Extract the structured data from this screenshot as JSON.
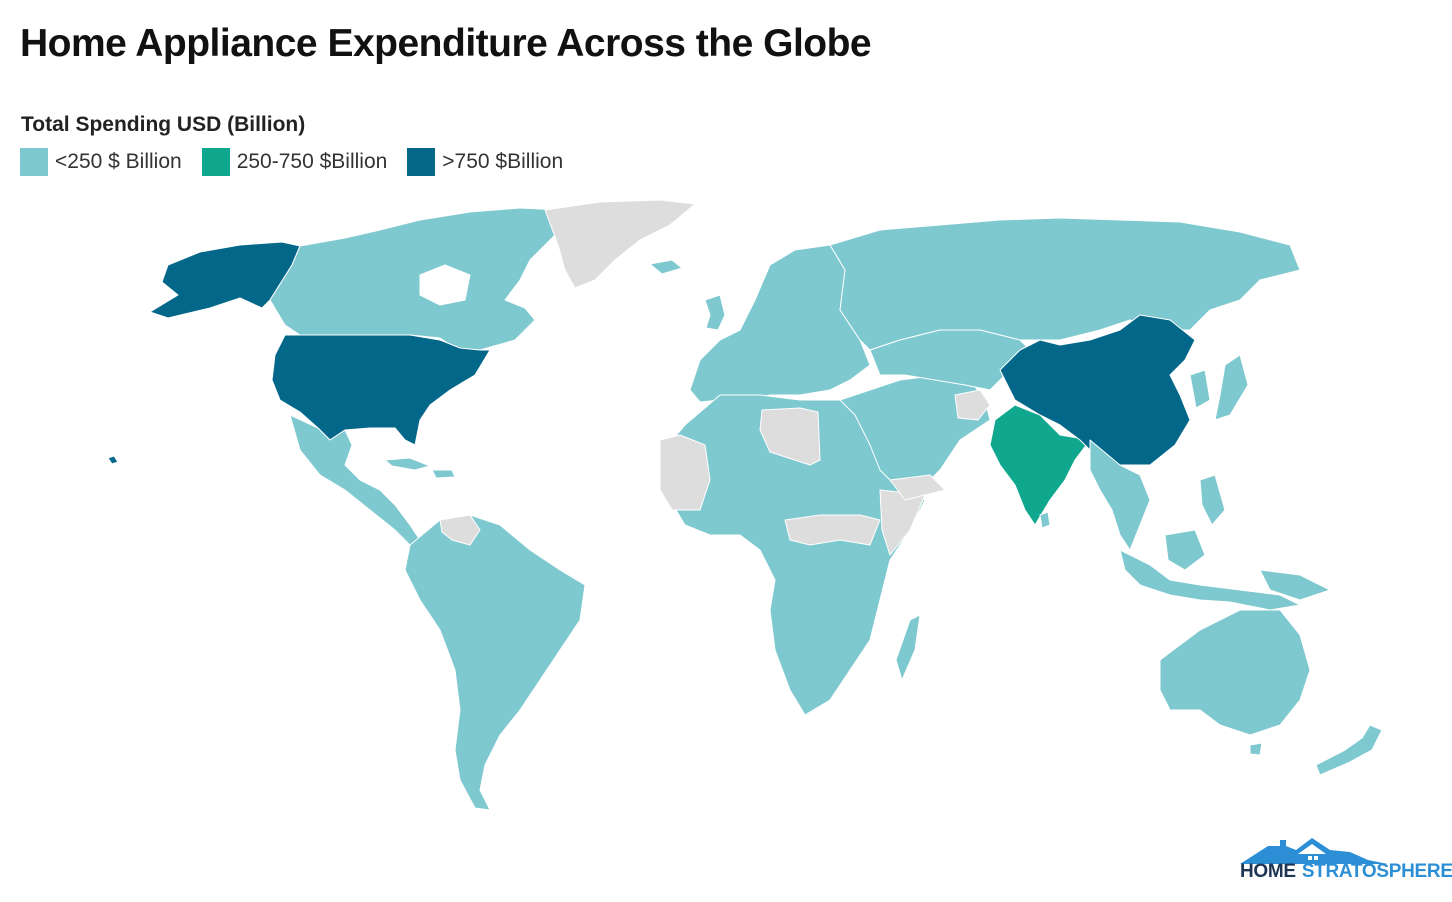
{
  "title": "Home Appliance Expenditure Across the Globe",
  "legend": {
    "title": "Total Spending USD (Billion)",
    "items": [
      {
        "label": "<250 $ Billion",
        "color": "#7ec8cf"
      },
      {
        "label": "250-750 $Billion",
        "color": "#0fa88e"
      },
      {
        "label": ">750 $Billion",
        "color": "#03678a"
      }
    ]
  },
  "no_data_color": "#dddddd",
  "countries": [
    {
      "name": "United States",
      "category": ">750 $Billion"
    },
    {
      "name": "China",
      "category": ">750 $Billion"
    },
    {
      "name": "India",
      "category": "250-750 $Billion"
    },
    {
      "name": "Greenland",
      "category": "no data"
    },
    {
      "name": "Libya",
      "category": "no data"
    },
    {
      "name": "Venezuela",
      "category": "no data"
    },
    {
      "name": "Afghanistan",
      "category": "no data"
    }
  ],
  "logo": {
    "word1": "HOME",
    "word2": "STRATOSPHERE",
    "icon": "house-roof-icon"
  }
}
